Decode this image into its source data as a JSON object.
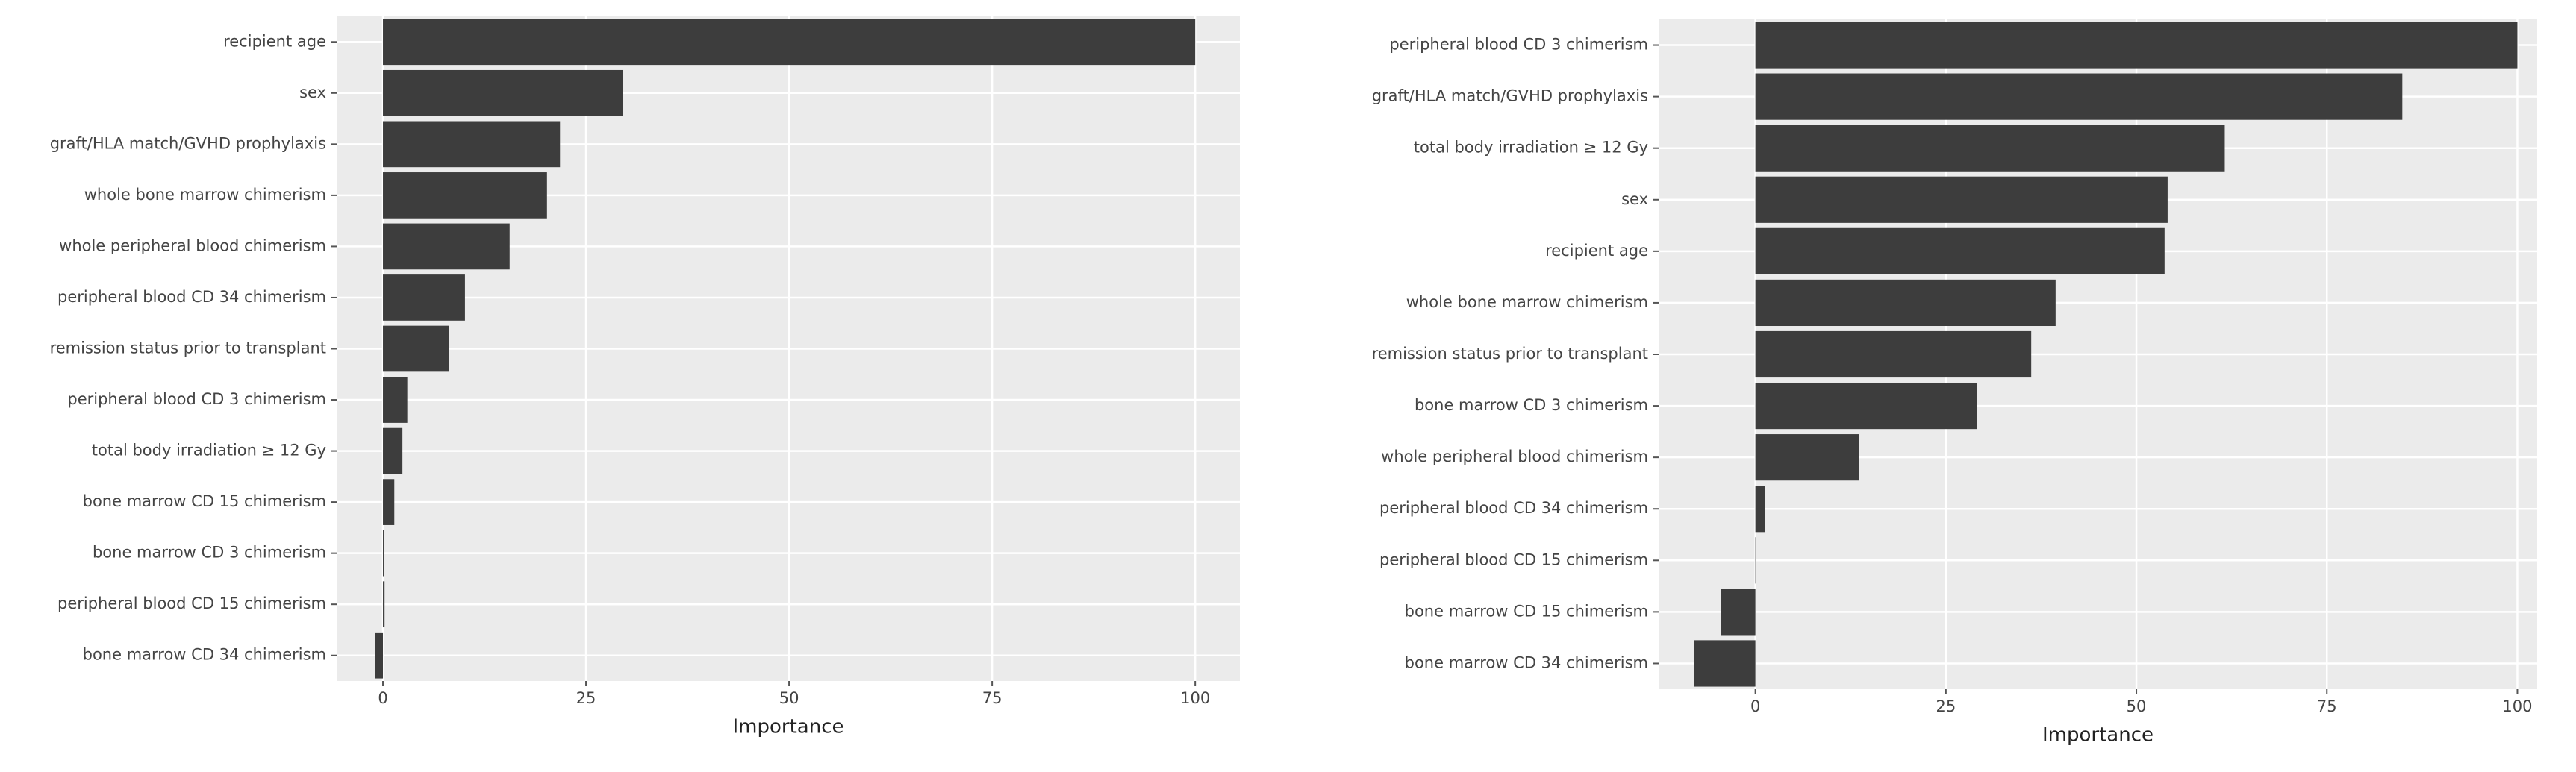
{
  "chart_data": [
    {
      "type": "bar",
      "orientation": "horizontal",
      "x_label": "Importance",
      "color": "#3d3d3d",
      "grid": true,
      "categories": [
        "recipient age",
        "sex",
        "graft/HLA match/GVHD prophylaxis",
        "whole bone marrow chimerism",
        "whole peripheral blood chimerism",
        "peripheral blood CD 34 chimerism",
        "remission status prior to transplant",
        "peripheral blood CD 3 chimerism",
        "total body irradiation ≥ 12 Gy",
        "bone marrow CD 15 chimerism",
        "bone marrow CD 3 chimerism",
        "peripheral blood CD 15 chimerism",
        "bone marrow CD 34 chimerism"
      ],
      "values": [
        100,
        29.5,
        21.8,
        20.2,
        15.6,
        10.1,
        8.1,
        3.0,
        2.4,
        1.4,
        0,
        0.2,
        -1.0
      ],
      "xlim": [
        -5.7,
        105.5
      ],
      "xticks": [
        0,
        25,
        50,
        75,
        100
      ]
    },
    {
      "type": "bar",
      "orientation": "horizontal",
      "x_label": "Importance",
      "color": "#3d3d3d",
      "grid": true,
      "categories": [
        "peripheral blood CD 3 chimerism",
        "graft/HLA match/GVHD prophylaxis",
        "total body irradiation ≥ 12 Gy",
        "sex",
        "recipient age",
        "whole bone marrow chimerism",
        "remission status prior to transplant",
        "bone marrow CD 3 chimerism",
        "whole peripheral blood chimerism",
        "peripheral blood CD 34 chimerism",
        "peripheral blood CD 15 chimerism",
        "bone marrow CD 15 chimerism",
        "bone marrow CD 34 chimerism"
      ],
      "values": [
        100,
        84.9,
        61.6,
        54.1,
        53.7,
        39.4,
        36.2,
        29.1,
        13.6,
        1.3,
        0,
        -4.5,
        -8.0
      ],
      "xlim": [
        -12.7,
        102.6
      ],
      "xticks": [
        0,
        25,
        50,
        75,
        100
      ]
    }
  ]
}
